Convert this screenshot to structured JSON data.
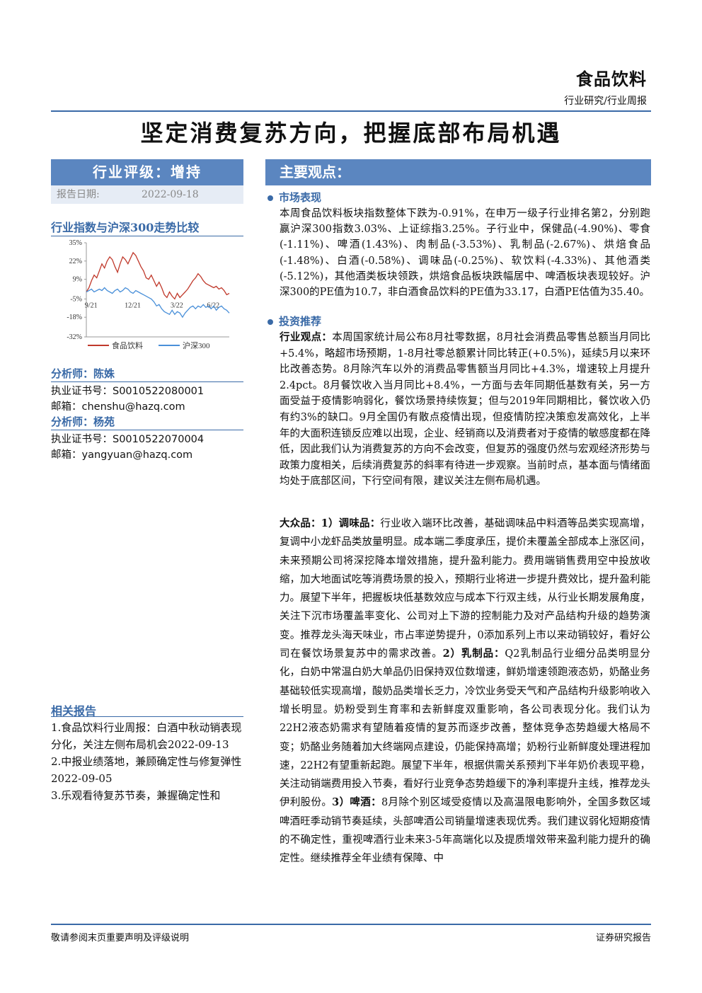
{
  "header": {
    "section": "食品饮料",
    "subtitle": "行业研究/行业周报"
  },
  "title": "坚定消费复苏方向，把握底部布局机遇",
  "rating": {
    "label": "行业评级：增持",
    "date_label": "报告日期:",
    "date_value": "2022-09-18"
  },
  "chart_title": "行业指数与沪深300走势比较",
  "chart_data": {
    "type": "line",
    "x_ticks": [
      "9/21",
      "12/21",
      "3/22",
      "6/22"
    ],
    "y_ticks": [
      "35%",
      "22%",
      "9%",
      "-5%",
      "-18%",
      "-32%"
    ],
    "ylim": [
      -32,
      35
    ],
    "series": [
      {
        "name": "食品饮料",
        "color": "#c0392b",
        "values": [
          0,
          3,
          8,
          12,
          10,
          15,
          20,
          17,
          22,
          25,
          23,
          18,
          14,
          20,
          25,
          23,
          20,
          24,
          28,
          26,
          22,
          18,
          15,
          10,
          9,
          12,
          8,
          4,
          7,
          3,
          -2,
          -4,
          0,
          -3,
          -5,
          -1,
          -4,
          -2,
          0,
          2,
          5,
          8,
          10,
          13,
          11,
          8,
          6,
          5,
          4,
          3,
          4,
          2,
          3,
          1,
          -2,
          -1
        ]
      },
      {
        "name": "沪深300",
        "color": "#4a90d9",
        "values": [
          0,
          1,
          2,
          0,
          1,
          2,
          1,
          3,
          1,
          0,
          -1,
          1,
          2,
          0,
          1,
          3,
          2,
          0,
          -1,
          1,
          0,
          -1,
          -2,
          -3,
          -4,
          -5,
          -7,
          -10,
          -9,
          -12,
          -14,
          -15,
          -16,
          -13,
          -16,
          -14,
          -15,
          -18,
          -15,
          -13,
          -11,
          -10,
          -12,
          -10,
          -11,
          -9,
          -11,
          -10,
          -12,
          -10,
          -13,
          -11,
          -10,
          -12,
          -13,
          -15
        ]
      }
    ]
  },
  "analysts": [
    {
      "name": "分析师：陈姝",
      "cert": "执业证书号：S0010522080001",
      "email": "邮箱：chenshu@hazq.com"
    },
    {
      "name": "分析师：杨苑",
      "cert": "执业证书号：S0010522070004",
      "email": "邮箱：yangyuan@hazq.com"
    }
  ],
  "related": {
    "title": "相关报告",
    "items": [
      "1.食品饮料行业周报：白酒中秋动销表现分化，关注左侧布局机会2022-09-13",
      "2.中报业绩落地，兼顾确定性与修复弹性 2022-09-05",
      "3.乐观看待复苏节奏，兼握确定性和"
    ]
  },
  "main": {
    "heading": "主要观点：",
    "market": {
      "heading": "市场表现",
      "text": "本周食品饮料板块指数整体下跌为-0.91%，在申万一级子行业排名第2，分别跑赢沪深300指数3.03%、上证综指3.25%。子行业中，保健品(-4.90%)、零食(-1.11%)、啤酒(1.43%)、肉制品(-3.53%)、乳制品(-2.67%)、烘焙食品(-1.48%)、白酒(-0.58%)、调味品(-0.25%)、软饮料(-4.33%)、其他酒类(-5.12%)，其他酒类板块领跌，烘焙食品板块跌幅居中、啤酒板块表现较好。沪深300的PE值为10.7，非白酒食品饮料的PE值为33.17，白酒PE估值为35.40。"
    },
    "invest": {
      "heading": "投资推荐",
      "view_label": "行业观点：",
      "view_text": "本周国家统计局公布8月社零数据，8月社会消费品零售总额当月同比+5.4%，略超市场预期，1-8月社零总额累计同比转正(+0.5%)，延续5月以来环比改善态势。8月除汽车以外的消费品零售额当月同比+4.3%，增速较上月提升2.4pct。8月餐饮收入当月同比+8.4%，一方面与去年同期低基数有关，另一方面受益于疫情影响弱化，餐饮场景持续恢复；但与2019年同期相比，餐饮收入仍有约3%的缺口。9月全国仍有散点疫情出现，但疫情防控决策愈发高效化，上半年的大面积连锁反应难以出现，企业、经销商以及消费者对于疫情的敏感度都在降低，因此我们认为消费复苏的方向不会改变，但复苏的强度仍然与宏观经济形势与政策力度相关，后续消费复苏的斜率有待进一步观察。当前时点，基本面与情绪面均处于底部区间，下行空间有限，建议关注左侧布局机遇。",
      "mass_label": "大众品：1）调味品：",
      "mass_text1": "行业收入端环比改善，基础调味品中料酒等品类实现高增，复调中小龙虾品类放量明显。成本端二季度承压，提价未覆盖全部成本上涨区间，未来预期公司将深挖降本增效措施，提升盈利能力。费用端销售费用空中投放收缩，加大地面试吃等消费场景的投入，预期行业将进一步提升费效比，提升盈利能力。展望下半年，把握板块低基数效应与成本下行双主线，从行业长期发展角度，关注下沉市场覆盖率变化、公司对上下游的控制能力及对产品结构升级的趋势演变。推荐龙头海天味业，市占率逆势提升，0添加系列上市以来动销较好，看好公司在餐饮场景复苏中的需求改善。",
      "dairy_label": "2）乳制品：",
      "dairy_text": "Q2乳制品行业细分品类明显分化，白奶中常温白奶大单品仍旧保持双位数增速，鲜奶增速领跑液态奶，奶酪业务基础较低实现高增，酸奶品类增长乏力，冷饮业务受天气和产品结构升级影响收入增长明显。奶粉受到生育率和去新鲜度双重影响，各公司表现分化。我们认为22H2液态奶需求有望随着疫情的复苏而逐步改善，整体竞争态势趋缓大格局不变；奶酪业务随着加大终端网点建设，仍能保持高增；奶粉行业新鲜度处理进程加速，22H2有望重新起跑。展望下半年，根据供需关系预判下半年奶价表现平稳，关注动销端费用投入节奏，看好行业竞争态势趋缓下的净利率提升主线，推荐龙头伊利股份。",
      "beer_label": "3）啤酒：",
      "beer_text": "8月除个别区域受疫情以及高温限电影响外，全国多数区域啤酒旺季动销节奏延续，头部啤酒公司销量增速表现优秀。我们建议弱化短期疫情的不确定性，重视啤酒行业未来3-5年高端化以及提质增效带来盈利能力提升的确定性。继续推荐全年业绩有保障、中"
    }
  },
  "footer": {
    "left": "敬请参阅末页重要声明及评级说明",
    "right": "证券研究报告"
  }
}
